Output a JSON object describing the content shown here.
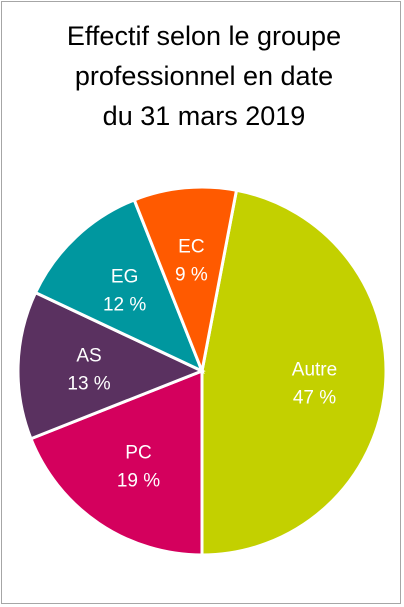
{
  "title": "Effectif selon le groupe\nprofessionnel en date\ndu 31 mars 2019",
  "chart_data": {
    "type": "pie",
    "title": "Effectif selon le groupe professionnel en date du 31 mars 2019",
    "slices": [
      {
        "label": "Autre",
        "value": 47,
        "value_label": "47 %",
        "color": "#c3d000"
      },
      {
        "label": "PC",
        "value": 19,
        "value_label": "19 %",
        "color": "#d4005d"
      },
      {
        "label": "AS",
        "value": 13,
        "value_label": "13 %",
        "color": "#5a3160"
      },
      {
        "label": "EG",
        "value": 12,
        "value_label": "12 %",
        "color": "#00979f"
      },
      {
        "label": "EC",
        "value": 9,
        "value_label": "9 %",
        "color": "#ff5a00"
      }
    ]
  }
}
